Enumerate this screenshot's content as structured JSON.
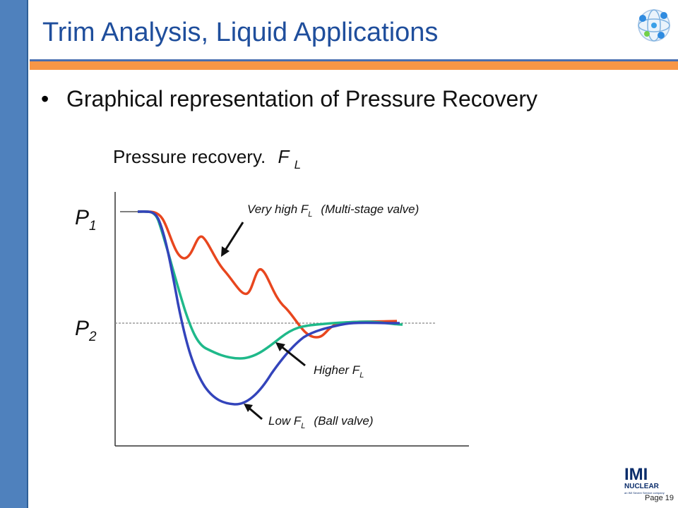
{
  "slide": {
    "title": "Trim Analysis, Liquid Applications",
    "bullet": "Graphical representation of Pressure Recovery",
    "page_number": "Page 19",
    "logo_text": "IMI",
    "logo_subtext": "NUCLEAR",
    "logo_tagline": "an IMI Severe Service company"
  },
  "figure": {
    "title_text": "Pressure recovery.",
    "title_symbol": "F",
    "title_subscript": "L",
    "p1_label": "P",
    "p1_sub": "1",
    "p2_label": "P",
    "p2_sub": "2",
    "annotations": {
      "very_high": {
        "pre": "Very high F",
        "sub": "L",
        "post": "(Multi-stage valve)"
      },
      "higher": {
        "pre": "Higher F",
        "sub": "L"
      },
      "low": {
        "pre": "Low F",
        "sub": "L",
        "post": "(Ball valve)"
      }
    },
    "colors": {
      "very_high": "#e8461e",
      "higher": "#1fb98a",
      "low": "#3344bb",
      "axis": "#333333",
      "p2_dashed": "#888888"
    }
  }
}
